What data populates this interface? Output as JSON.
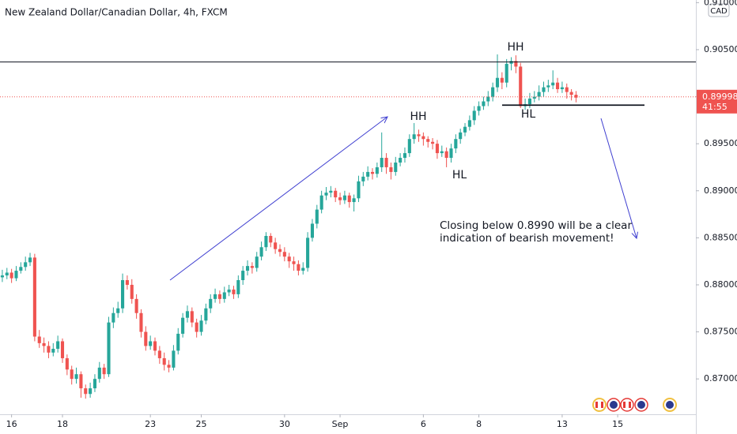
{
  "chart_data": {
    "type": "candlestick",
    "title": "New Zealand Dollar/Canadian Dollar, 4h, FXCM",
    "currency": "CAD",
    "up_color": "#26a69a",
    "down_color": "#ef5350",
    "ylim": [
      0.86624,
      0.91028
    ],
    "yticks": [
      {
        "value": 0.87,
        "label": "0.87000"
      },
      {
        "value": 0.875,
        "label": "0.87500"
      },
      {
        "value": 0.88,
        "label": "0.88000"
      },
      {
        "value": 0.885,
        "label": "0.88500"
      },
      {
        "value": 0.89,
        "label": "0.89000"
      },
      {
        "value": 0.895,
        "label": "0.89500"
      },
      {
        "value": 0.9,
        "label": "0.90000"
      },
      {
        "value": 0.905,
        "label": "0.90500"
      },
      {
        "value": 0.91,
        "label": "0.91000"
      }
    ],
    "xlim": [
      -0.5,
      149.9
    ],
    "xticks": [
      {
        "value": 2,
        "label": "16"
      },
      {
        "value": 13,
        "label": "18"
      },
      {
        "value": 32,
        "label": "23"
      },
      {
        "value": 43,
        "label": "25"
      },
      {
        "value": 61,
        "label": "30"
      },
      {
        "value": 73,
        "label": "Sep"
      },
      {
        "value": 91,
        "label": "6"
      },
      {
        "value": 103,
        "label": "8"
      },
      {
        "value": 121,
        "label": "13"
      },
      {
        "value": 133,
        "label": "15"
      }
    ],
    "ohlc": [
      [
        0.8808,
        0.8816,
        0.8803,
        0.881
      ],
      [
        0.881,
        0.8818,
        0.8806,
        0.8813
      ],
      [
        0.8813,
        0.8817,
        0.8802,
        0.8807
      ],
      [
        0.8807,
        0.882,
        0.8804,
        0.8815
      ],
      [
        0.8815,
        0.8824,
        0.8812,
        0.8819
      ],
      [
        0.8819,
        0.883,
        0.8815,
        0.8824
      ],
      [
        0.8824,
        0.8834,
        0.882,
        0.8829
      ],
      [
        0.8829,
        0.8833,
        0.874,
        0.8745
      ],
      [
        0.8745,
        0.8752,
        0.8733,
        0.8738
      ],
      [
        0.8738,
        0.8744,
        0.8728,
        0.8735
      ],
      [
        0.8735,
        0.874,
        0.8722,
        0.8728
      ],
      [
        0.8728,
        0.8738,
        0.8724,
        0.8732
      ],
      [
        0.8732,
        0.8746,
        0.8728,
        0.874
      ],
      [
        0.874,
        0.8743,
        0.8717,
        0.8722
      ],
      [
        0.8722,
        0.8726,
        0.8704,
        0.871
      ],
      [
        0.871,
        0.8714,
        0.8694,
        0.87
      ],
      [
        0.87,
        0.8712,
        0.8695,
        0.8705
      ],
      [
        0.8705,
        0.8708,
        0.868,
        0.869
      ],
      [
        0.869,
        0.8694,
        0.8679,
        0.8684
      ],
      [
        0.8684,
        0.8696,
        0.868,
        0.869
      ],
      [
        0.869,
        0.8705,
        0.8686,
        0.87
      ],
      [
        0.87,
        0.8718,
        0.8696,
        0.8712
      ],
      [
        0.8712,
        0.8716,
        0.87,
        0.8705
      ],
      [
        0.8705,
        0.8766,
        0.8702,
        0.876
      ],
      [
        0.876,
        0.8776,
        0.8754,
        0.877
      ],
      [
        0.877,
        0.8782,
        0.8765,
        0.8775
      ],
      [
        0.8775,
        0.8812,
        0.877,
        0.8805
      ],
      [
        0.8805,
        0.881,
        0.8795,
        0.88
      ],
      [
        0.88,
        0.8806,
        0.878,
        0.8785
      ],
      [
        0.8785,
        0.879,
        0.8764,
        0.877
      ],
      [
        0.877,
        0.8774,
        0.8744,
        0.875
      ],
      [
        0.875,
        0.8756,
        0.873,
        0.8735
      ],
      [
        0.8735,
        0.8746,
        0.8731,
        0.874
      ],
      [
        0.874,
        0.8744,
        0.8725,
        0.873
      ],
      [
        0.873,
        0.8735,
        0.8716,
        0.8722
      ],
      [
        0.8722,
        0.8728,
        0.8709,
        0.8715
      ],
      [
        0.8715,
        0.872,
        0.8707,
        0.8712
      ],
      [
        0.8712,
        0.8736,
        0.8709,
        0.873
      ],
      [
        0.873,
        0.8754,
        0.8726,
        0.8748
      ],
      [
        0.8748,
        0.877,
        0.8744,
        0.8765
      ],
      [
        0.8765,
        0.8778,
        0.876,
        0.8772
      ],
      [
        0.8772,
        0.8776,
        0.8755,
        0.876
      ],
      [
        0.876,
        0.8764,
        0.8744,
        0.875
      ],
      [
        0.875,
        0.8768,
        0.8746,
        0.8762
      ],
      [
        0.8762,
        0.878,
        0.8758,
        0.8775
      ],
      [
        0.8775,
        0.879,
        0.877,
        0.8785
      ],
      [
        0.8785,
        0.8796,
        0.8781,
        0.879
      ],
      [
        0.879,
        0.8794,
        0.878,
        0.8785
      ],
      [
        0.8785,
        0.8798,
        0.8781,
        0.8792
      ],
      [
        0.8792,
        0.88,
        0.8788,
        0.8795
      ],
      [
        0.8795,
        0.8799,
        0.8785,
        0.879
      ],
      [
        0.879,
        0.881,
        0.8786,
        0.8805
      ],
      [
        0.8805,
        0.882,
        0.88,
        0.8815
      ],
      [
        0.8815,
        0.8826,
        0.881,
        0.882
      ],
      [
        0.882,
        0.8824,
        0.8812,
        0.8818
      ],
      [
        0.8818,
        0.8835,
        0.8814,
        0.883
      ],
      [
        0.883,
        0.8846,
        0.8826,
        0.884
      ],
      [
        0.884,
        0.8856,
        0.8836,
        0.8852
      ],
      [
        0.8852,
        0.8855,
        0.884,
        0.8845
      ],
      [
        0.8845,
        0.885,
        0.8833,
        0.8838
      ],
      [
        0.8838,
        0.8843,
        0.883,
        0.8835
      ],
      [
        0.8835,
        0.884,
        0.8825,
        0.883
      ],
      [
        0.883,
        0.8834,
        0.8818,
        0.8825
      ],
      [
        0.8825,
        0.883,
        0.8815,
        0.8822
      ],
      [
        0.8822,
        0.8826,
        0.881,
        0.8815
      ],
      [
        0.8815,
        0.8824,
        0.8811,
        0.8818
      ],
      [
        0.8818,
        0.8856,
        0.8814,
        0.885
      ],
      [
        0.885,
        0.887,
        0.8846,
        0.8865
      ],
      [
        0.8865,
        0.8885,
        0.886,
        0.888
      ],
      [
        0.888,
        0.89,
        0.8876,
        0.8895
      ],
      [
        0.8895,
        0.8904,
        0.889,
        0.8898
      ],
      [
        0.8898,
        0.8905,
        0.8893,
        0.89
      ],
      [
        0.89,
        0.8903,
        0.8888,
        0.8893
      ],
      [
        0.8893,
        0.8898,
        0.8885,
        0.889
      ],
      [
        0.889,
        0.89,
        0.8886,
        0.8895
      ],
      [
        0.8895,
        0.8898,
        0.8882,
        0.8888
      ],
      [
        0.8888,
        0.8896,
        0.8878,
        0.8892
      ],
      [
        0.8892,
        0.8916,
        0.8888,
        0.891
      ],
      [
        0.891,
        0.892,
        0.8905,
        0.8915
      ],
      [
        0.8915,
        0.8926,
        0.8911,
        0.892
      ],
      [
        0.892,
        0.8924,
        0.8912,
        0.8918
      ],
      [
        0.8918,
        0.893,
        0.8914,
        0.8925
      ],
      [
        0.8925,
        0.8962,
        0.892,
        0.8935
      ],
      [
        0.8935,
        0.894,
        0.8918,
        0.8925
      ],
      [
        0.8925,
        0.893,
        0.8912,
        0.892
      ],
      [
        0.892,
        0.8936,
        0.8916,
        0.893
      ],
      [
        0.893,
        0.894,
        0.8926,
        0.8935
      ],
      [
        0.8935,
        0.8946,
        0.893,
        0.894
      ],
      [
        0.894,
        0.896,
        0.8936,
        0.8955
      ],
      [
        0.8955,
        0.8972,
        0.895,
        0.896
      ],
      [
        0.896,
        0.8965,
        0.8952,
        0.8958
      ],
      [
        0.8958,
        0.8962,
        0.8948,
        0.8955
      ],
      [
        0.8955,
        0.8958,
        0.8946,
        0.8952
      ],
      [
        0.8952,
        0.8956,
        0.8944,
        0.895
      ],
      [
        0.895,
        0.8954,
        0.8934,
        0.894
      ],
      [
        0.894,
        0.8948,
        0.8936,
        0.8942
      ],
      [
        0.8942,
        0.8946,
        0.8925,
        0.8935
      ],
      [
        0.8935,
        0.895,
        0.893,
        0.8945
      ],
      [
        0.8945,
        0.896,
        0.894,
        0.8955
      ],
      [
        0.8955,
        0.8966,
        0.895,
        0.8962
      ],
      [
        0.8962,
        0.8972,
        0.8958,
        0.8968
      ],
      [
        0.8968,
        0.898,
        0.8964,
        0.8975
      ],
      [
        0.8975,
        0.899,
        0.897,
        0.8985
      ],
      [
        0.8985,
        0.8995,
        0.898,
        0.899
      ],
      [
        0.899,
        0.9,
        0.8986,
        0.8995
      ],
      [
        0.8995,
        0.9006,
        0.899,
        0.9
      ],
      [
        0.9,
        0.9015,
        0.8995,
        0.901
      ],
      [
        0.901,
        0.9045,
        0.9005,
        0.902
      ],
      [
        0.902,
        0.9026,
        0.9008,
        0.9015
      ],
      [
        0.9015,
        0.904,
        0.901,
        0.9035
      ],
      [
        0.9035,
        0.9042,
        0.9028,
        0.9038
      ],
      [
        0.9038,
        0.9044,
        0.9025,
        0.9032
      ],
      [
        0.9032,
        0.9036,
        0.8988,
        0.899
      ],
      [
        0.899,
        0.8998,
        0.8986,
        0.8992
      ],
      [
        0.8992,
        0.9004,
        0.8988,
        0.8998
      ],
      [
        0.8998,
        0.9006,
        0.8994,
        0.9
      ],
      [
        0.9,
        0.9012,
        0.8996,
        0.9005
      ],
      [
        0.9005,
        0.9016,
        0.9,
        0.901
      ],
      [
        0.901,
        0.9018,
        0.9005,
        0.9012
      ],
      [
        0.9012,
        0.9028,
        0.9008,
        0.9015
      ],
      [
        0.9015,
        0.902,
        0.9004,
        0.9008
      ],
      [
        0.9008,
        0.9016,
        0.9004,
        0.901
      ],
      [
        0.901,
        0.9014,
        0.8998,
        0.9005
      ],
      [
        0.9005,
        0.9008,
        0.8996,
        0.9002
      ],
      [
        0.9002,
        0.9006,
        0.8994,
        0.8999
      ]
    ],
    "last_price": 0.89998,
    "countdown": "41:55",
    "resistance": 0.9037,
    "support": 0.8991,
    "annotations": [
      "HH",
      "HH",
      "HL",
      "HL"
    ],
    "note": [
      "Closing below 0.8990 will be a clear",
      "indication of bearish movement!"
    ]
  }
}
